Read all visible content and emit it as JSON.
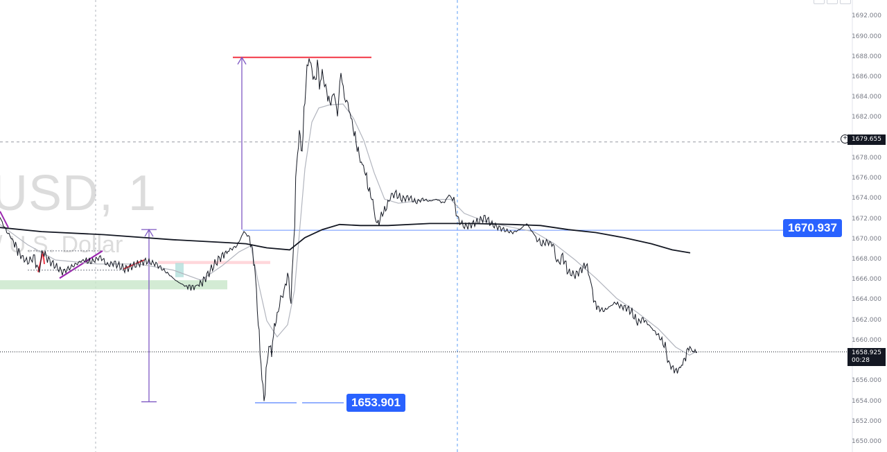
{
  "watermark": {
    "symbol": "USD, 1",
    "description": "/ U.S. Dollar"
  },
  "colors": {
    "candle": "#131722",
    "ma_slow": "#131722",
    "ma_fast": "#b2b5be",
    "measure_line": "#7e57c2",
    "hline_blue": "#2962ff",
    "hline_red": "#f23645",
    "zone_green": "#c8e6c9",
    "zone_red": "#ffcdd2",
    "drawing_purple": "#9c27b0",
    "drawing_red": "#f23645"
  },
  "axis": {
    "ticks": [
      "1692.000",
      "1690.000",
      "1688.000",
      "1686.000",
      "1684.000",
      "1682.000",
      "1680.000",
      "1678.000",
      "1676.000",
      "1674.000",
      "1672.000",
      "1670.000",
      "1668.000",
      "1666.000",
      "1664.000",
      "1662.000",
      "1660.000",
      "1658.000",
      "1656.000",
      "1654.000",
      "1652.000",
      "1650.000"
    ],
    "crosshair_price": "1679.655",
    "last_price": "1658.925",
    "countdown": "00:28"
  },
  "labels": {
    "level_high": "1670.937",
    "level_low": "1653.901"
  },
  "chart_data": {
    "type": "line",
    "title": "",
    "ylim": [
      1650,
      1692.5
    ],
    "grid": false,
    "close_path": [
      [
        0,
        1672.2
      ],
      [
        8,
        1671.0
      ],
      [
        18,
        1670.0
      ],
      [
        30,
        1668.4
      ],
      [
        40,
        1667.8
      ],
      [
        50,
        1668.3
      ],
      [
        55,
        1666.8
      ],
      [
        62,
        1668.8
      ],
      [
        70,
        1668.0
      ],
      [
        80,
        1667.4
      ],
      [
        90,
        1666.8
      ],
      [
        100,
        1667.2
      ],
      [
        110,
        1667.6
      ],
      [
        120,
        1668.0
      ],
      [
        132,
        1667.8
      ],
      [
        145,
        1668.3
      ],
      [
        155,
        1667.5
      ],
      [
        165,
        1667.7
      ],
      [
        180,
        1667.1
      ],
      [
        195,
        1667.5
      ],
      [
        210,
        1667.9
      ],
      [
        225,
        1667.6
      ],
      [
        240,
        1666.8
      ],
      [
        255,
        1665.9
      ],
      [
        268,
        1665.4
      ],
      [
        280,
        1665.3
      ],
      [
        292,
        1665.8
      ],
      [
        300,
        1666.6
      ],
      [
        310,
        1667.6
      ],
      [
        320,
        1668.4
      ],
      [
        332,
        1669.0
      ],
      [
        342,
        1669.4
      ],
      [
        352,
        1670.8
      ],
      [
        360,
        1670.2
      ],
      [
        366,
        1668.3
      ],
      [
        370,
        1665.0
      ],
      [
        374,
        1660.3
      ],
      [
        378,
        1656.5
      ],
      [
        381,
        1654.0
      ],
      [
        384,
        1656.8
      ],
      [
        388,
        1659.6
      ],
      [
        392,
        1659.0
      ],
      [
        396,
        1661.4
      ],
      [
        400,
        1662.5
      ],
      [
        405,
        1664.2
      ],
      [
        410,
        1664.8
      ],
      [
        415,
        1666.6
      ],
      [
        420,
        1664.0
      ],
      [
        424,
        1670.0
      ],
      [
        428,
        1677.4
      ],
      [
        432,
        1680.6
      ],
      [
        436,
        1678.6
      ],
      [
        440,
        1684.0
      ],
      [
        443,
        1686.8
      ],
      [
        446,
        1688.0
      ],
      [
        450,
        1686.8
      ],
      [
        455,
        1685.4
      ],
      [
        458,
        1687.6
      ],
      [
        461,
        1685.2
      ],
      [
        465,
        1686.4
      ],
      [
        470,
        1685.0
      ],
      [
        476,
        1683.4
      ],
      [
        482,
        1684.5
      ],
      [
        487,
        1682.4
      ],
      [
        492,
        1686.6
      ],
      [
        497,
        1684.0
      ],
      [
        502,
        1683.4
      ],
      [
        508,
        1681.6
      ],
      [
        514,
        1679.6
      ],
      [
        520,
        1677.8
      ],
      [
        526,
        1677.0
      ],
      [
        532,
        1675.0
      ],
      [
        538,
        1673.8
      ],
      [
        543,
        1671.6
      ],
      [
        547,
        1671.8
      ],
      [
        552,
        1672.6
      ],
      [
        558,
        1673.2
      ],
      [
        563,
        1674.2
      ],
      [
        570,
        1674.6
      ],
      [
        580,
        1674.0
      ],
      [
        590,
        1674.2
      ],
      [
        600,
        1673.7
      ],
      [
        610,
        1674.0
      ],
      [
        620,
        1673.8
      ],
      [
        630,
        1674.0
      ],
      [
        640,
        1673.6
      ],
      [
        648,
        1674.4
      ],
      [
        655,
        1673.9
      ],
      [
        660,
        1672.2
      ],
      [
        665,
        1671.6
      ],
      [
        672,
        1671.3
      ],
      [
        680,
        1671.5
      ],
      [
        690,
        1671.8
      ],
      [
        700,
        1672.2
      ],
      [
        710,
        1671.5
      ],
      [
        720,
        1671.2
      ],
      [
        730,
        1670.9
      ],
      [
        740,
        1670.7
      ],
      [
        750,
        1671.0
      ],
      [
        760,
        1671.6
      ],
      [
        768,
        1670.8
      ],
      [
        775,
        1670.0
      ],
      [
        782,
        1669.6
      ],
      [
        790,
        1669.8
      ],
      [
        798,
        1669.5
      ],
      [
        805,
        1667.6
      ],
      [
        812,
        1668.4
      ],
      [
        820,
        1666.8
      ],
      [
        830,
        1666.5
      ],
      [
        838,
        1667.0
      ],
      [
        846,
        1667.6
      ],
      [
        852,
        1666.0
      ],
      [
        858,
        1663.8
      ],
      [
        864,
        1663.2
      ],
      [
        872,
        1663.0
      ],
      [
        880,
        1663.4
      ],
      [
        888,
        1663.8
      ],
      [
        896,
        1663.4
      ],
      [
        904,
        1663.3
      ],
      [
        912,
        1662.8
      ],
      [
        920,
        1661.8
      ],
      [
        928,
        1662.2
      ],
      [
        936,
        1661.6
      ],
      [
        944,
        1661.0
      ],
      [
        952,
        1660.4
      ],
      [
        960,
        1659.4
      ],
      [
        965,
        1657.8
      ],
      [
        970,
        1657.4
      ],
      [
        976,
        1657.0
      ],
      [
        982,
        1657.4
      ],
      [
        988,
        1658.2
      ],
      [
        994,
        1659.4
      ],
      [
        1000,
        1659.0
      ],
      [
        1006,
        1658.9
      ]
    ],
    "ma_slow": [
      [
        0,
        1671.2
      ],
      [
        60,
        1670.8
      ],
      [
        150,
        1670.5
      ],
      [
        250,
        1670.0
      ],
      [
        330,
        1669.7
      ],
      [
        355,
        1669.6
      ],
      [
        385,
        1669.2
      ],
      [
        418,
        1669.0
      ],
      [
        440,
        1670.2
      ],
      [
        465,
        1671.0
      ],
      [
        490,
        1671.5
      ],
      [
        520,
        1671.4
      ],
      [
        560,
        1671.4
      ],
      [
        620,
        1671.6
      ],
      [
        680,
        1671.6
      ],
      [
        740,
        1671.5
      ],
      [
        780,
        1671.4
      ],
      [
        820,
        1671.0
      ],
      [
        860,
        1670.7
      ],
      [
        900,
        1670.2
      ],
      [
        940,
        1669.6
      ],
      [
        970,
        1669.0
      ],
      [
        996,
        1668.7
      ]
    ],
    "ma_fast": [
      [
        0,
        1671.5
      ],
      [
        40,
        1669.5
      ],
      [
        80,
        1668.0
      ],
      [
        140,
        1667.6
      ],
      [
        200,
        1667.6
      ],
      [
        250,
        1667.0
      ],
      [
        290,
        1666.0
      ],
      [
        320,
        1667.4
      ],
      [
        345,
        1668.8
      ],
      [
        362,
        1669.4
      ],
      [
        372,
        1666.0
      ],
      [
        385,
        1662.0
      ],
      [
        400,
        1660.4
      ],
      [
        415,
        1661.6
      ],
      [
        425,
        1665.0
      ],
      [
        432,
        1670.6
      ],
      [
        440,
        1677.0
      ],
      [
        450,
        1681.6
      ],
      [
        460,
        1683.0
      ],
      [
        475,
        1683.3
      ],
      [
        495,
        1683.4
      ],
      [
        510,
        1682.0
      ],
      [
        525,
        1679.8
      ],
      [
        540,
        1676.6
      ],
      [
        555,
        1674.0
      ],
      [
        575,
        1673.6
      ],
      [
        610,
        1673.9
      ],
      [
        650,
        1674.0
      ],
      [
        670,
        1672.6
      ],
      [
        700,
        1671.8
      ],
      [
        740,
        1671.2
      ],
      [
        770,
        1670.8
      ],
      [
        800,
        1669.6
      ],
      [
        830,
        1668.0
      ],
      [
        860,
        1666.2
      ],
      [
        890,
        1664.2
      ],
      [
        920,
        1662.8
      ],
      [
        950,
        1661.2
      ],
      [
        975,
        1659.4
      ],
      [
        995,
        1658.6
      ],
      [
        1006,
        1659.0
      ]
    ]
  }
}
